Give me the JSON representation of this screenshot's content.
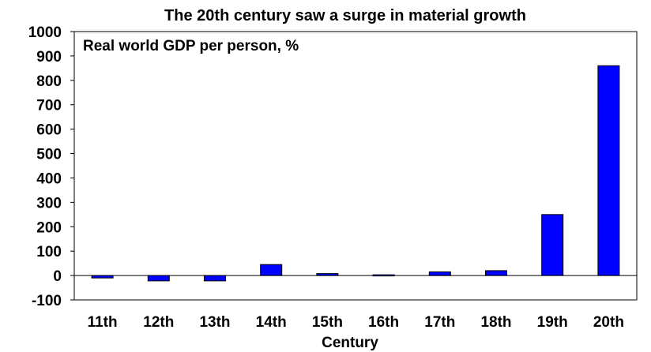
{
  "chart_data": {
    "type": "bar",
    "title": "The 20th century saw a surge in material growth",
    "subtitle": "Real world GDP per person, %",
    "xlabel": "Century",
    "ylabel": "",
    "categories": [
      "11th",
      "12th",
      "13th",
      "14th",
      "15th",
      "16th",
      "17th",
      "18th",
      "19th",
      "20th"
    ],
    "values": [
      -10,
      -22,
      -22,
      45,
      8,
      3,
      15,
      20,
      250,
      860
    ],
    "ylim": [
      -100,
      1000
    ],
    "yticks": [
      -100,
      0,
      100,
      200,
      300,
      400,
      500,
      600,
      700,
      800,
      900,
      1000
    ],
    "bar_color": "#0000ff",
    "bar_edge_color": "#000000",
    "grid": false,
    "legend": "none"
  }
}
